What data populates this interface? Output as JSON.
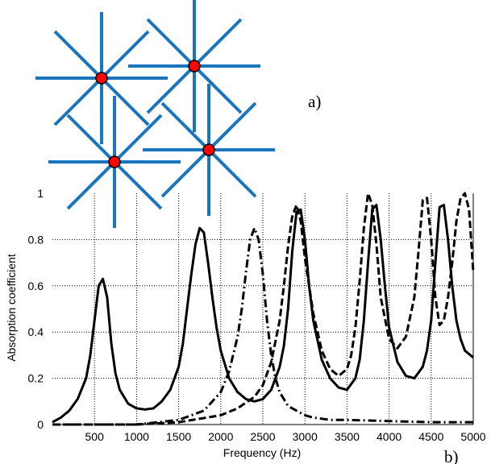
{
  "figure": {
    "panel_a_label": "a)",
    "panel_b_label": "b)",
    "lattice_color": "#1b75bc",
    "node_color": "#ff0000"
  },
  "chart_data": {
    "type": "line",
    "xlabel": "Frequency (Hz)",
    "ylabel": "Absorption coefficient",
    "xlim": [
      0,
      5000
    ],
    "ylim": [
      0,
      1
    ],
    "xticks": [
      500,
      1000,
      1500,
      2000,
      2500,
      3000,
      3500,
      4000,
      4500,
      5000
    ],
    "yticks": [
      0,
      0.2,
      0.4,
      0.6,
      0.8,
      1
    ],
    "grid": true,
    "series": [
      {
        "style": "solid",
        "x": [
          0,
          100,
          200,
          300,
          400,
          450,
          500,
          550,
          600,
          650,
          700,
          750,
          800,
          900,
          1000,
          1100,
          1200,
          1300,
          1400,
          1500,
          1550,
          1600,
          1650,
          1700,
          1750,
          1800,
          1850,
          1900,
          1950,
          2000,
          2100,
          2200,
          2300,
          2400,
          2500,
          2600,
          2700,
          2750,
          2800,
          2850,
          2900,
          2950,
          3000,
          3050,
          3100,
          3200,
          3300,
          3400,
          3500,
          3600,
          3650,
          3700,
          3750,
          3800,
          3850,
          3900,
          3950,
          4000,
          4100,
          4200,
          4300,
          4400,
          4450,
          4500,
          4550,
          4600,
          4650,
          4700,
          4750,
          4800,
          4850,
          4900,
          5000
        ],
        "y": [
          0.01,
          0.03,
          0.06,
          0.11,
          0.2,
          0.3,
          0.45,
          0.6,
          0.63,
          0.55,
          0.35,
          0.22,
          0.15,
          0.09,
          0.07,
          0.065,
          0.07,
          0.1,
          0.15,
          0.25,
          0.35,
          0.5,
          0.65,
          0.78,
          0.85,
          0.83,
          0.7,
          0.55,
          0.42,
          0.32,
          0.2,
          0.14,
          0.11,
          0.1,
          0.11,
          0.15,
          0.25,
          0.34,
          0.5,
          0.75,
          0.92,
          0.93,
          0.8,
          0.6,
          0.45,
          0.28,
          0.2,
          0.16,
          0.15,
          0.2,
          0.28,
          0.45,
          0.7,
          0.93,
          0.95,
          0.8,
          0.6,
          0.42,
          0.27,
          0.21,
          0.2,
          0.25,
          0.32,
          0.45,
          0.7,
          0.94,
          0.95,
          0.8,
          0.6,
          0.45,
          0.37,
          0.32,
          0.29
        ]
      },
      {
        "style": "dashed",
        "x": [
          0,
          500,
          1000,
          1500,
          2000,
          2200,
          2400,
          2500,
          2600,
          2700,
          2750,
          2800,
          2850,
          2900,
          2950,
          3000,
          3100,
          3200,
          3300,
          3400,
          3500,
          3550,
          3600,
          3650,
          3700,
          3750,
          3800,
          3850,
          3900,
          4000,
          4100,
          4200,
          4300,
          4350,
          4400,
          4450,
          4500,
          4550,
          4600,
          4650,
          4700,
          4750,
          4800,
          4850,
          4900,
          4950,
          5000
        ],
        "y": [
          0,
          0,
          0,
          0.01,
          0.04,
          0.07,
          0.12,
          0.17,
          0.27,
          0.45,
          0.6,
          0.77,
          0.9,
          0.95,
          0.88,
          0.72,
          0.48,
          0.32,
          0.24,
          0.21,
          0.24,
          0.3,
          0.42,
          0.62,
          0.85,
          1.0,
          0.95,
          0.78,
          0.55,
          0.37,
          0.33,
          0.38,
          0.55,
          0.75,
          0.97,
          0.98,
          0.8,
          0.55,
          0.43,
          0.45,
          0.55,
          0.7,
          0.88,
          0.98,
          1.0,
          0.93,
          0.66
        ]
      },
      {
        "style": "dash-dot",
        "x": [
          0,
          500,
          1000,
          1500,
          1800,
          2000,
          2100,
          2200,
          2250,
          2300,
          2350,
          2400,
          2450,
          2500,
          2550,
          2600,
          2650,
          2700,
          2800,
          2900,
          3000,
          3100,
          3200,
          3300,
          3500,
          4000,
          4500,
          5000
        ],
        "y": [
          0,
          0,
          0,
          0.02,
          0.06,
          0.14,
          0.23,
          0.38,
          0.5,
          0.66,
          0.8,
          0.85,
          0.8,
          0.65,
          0.45,
          0.3,
          0.2,
          0.14,
          0.08,
          0.06,
          0.04,
          0.03,
          0.025,
          0.02,
          0.02,
          0.015,
          0.01,
          0.01
        ]
      }
    ]
  }
}
